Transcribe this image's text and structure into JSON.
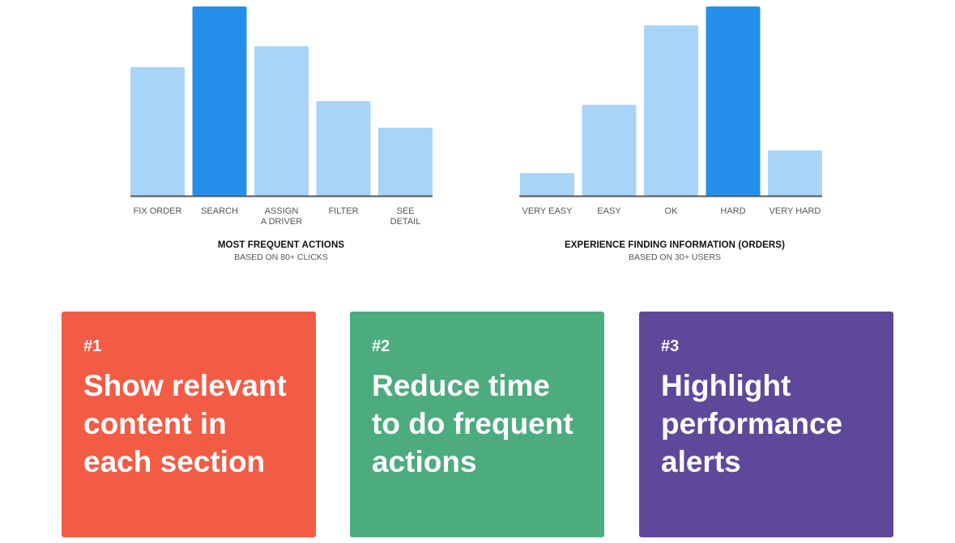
{
  "chart_data": [
    {
      "type": "bar",
      "title": "MOST FREQUENT ACTIONS",
      "subtitle": "BASED ON 80+ CLICKS",
      "categories": [
        "FIX ORDER",
        "SEARCH",
        "ASSIGN A DRIVER",
        "FILTER",
        "SEE DETAIL"
      ],
      "category_lines": [
        [
          "FIX ORDER"
        ],
        [
          "SEARCH"
        ],
        [
          "ASSIGN",
          "A DRIVER"
        ],
        [
          "FILTER"
        ],
        [
          "SEE",
          "DETAIL"
        ]
      ],
      "values": [
        68,
        100,
        79,
        50,
        36
      ],
      "highlight_index": 1,
      "ylim": [
        0,
        100
      ],
      "grid": false,
      "yaxis_shown": false
    },
    {
      "type": "bar",
      "title": "EXPERIENCE FINDING INFORMATION (ORDERS)",
      "subtitle": "BASED ON 30+ USERS",
      "categories": [
        "VERY EASY",
        "EASY",
        "OK",
        "HARD",
        "VERY HARD"
      ],
      "category_lines": [
        [
          "VERY EASY"
        ],
        [
          "EASY"
        ],
        [
          "OK"
        ],
        [
          "HARD"
        ],
        [
          "VERY HARD"
        ]
      ],
      "values": [
        12,
        48,
        90,
        100,
        24
      ],
      "highlight_index": 3,
      "ylim": [
        0,
        100
      ],
      "grid": false,
      "yaxis_shown": false
    }
  ],
  "colors": {
    "bar": "#a8d4f8",
    "bar_highlight": "#2590ec",
    "axis": "#555555",
    "tick_label": "#555555"
  },
  "cards": [
    {
      "number": "#1",
      "text": "Show relevant\ncontent  in\neach section",
      "color": "#f25c45"
    },
    {
      "number": "#2",
      "text": "Reduce time\nto do frequent\nactions",
      "color": "#4cac7e"
    },
    {
      "number": "#3",
      "text": "Highlight\nperformance\nalerts",
      "color": "#5f489a"
    }
  ]
}
